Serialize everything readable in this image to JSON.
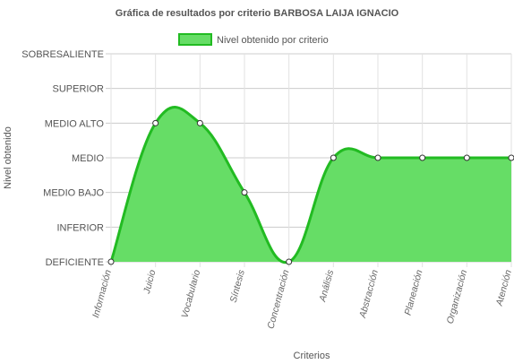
{
  "chart_data": {
    "type": "area",
    "title": "Gráfica de resultados por criterio BARBOSA LAIJA IGNACIO",
    "xlabel": "Criterios",
    "ylabel": "Nivel obtenido",
    "categories": [
      "Información",
      "Juicio",
      "Vocabulario",
      "Síntesis",
      "Concentración",
      "Análisis",
      "Abstracción",
      "Planeación",
      "Organización",
      "Atención"
    ],
    "y_levels": [
      "DEFICIENTE",
      "INFERIOR",
      "MEDIO BAJO",
      "MEDIO",
      "MEDIO ALTO",
      "SUPERIOR",
      "SOBRESALIENTE"
    ],
    "ylim": [
      0,
      6
    ],
    "series": [
      {
        "name": "Nivel obtenido por criterio",
        "values": [
          0,
          4,
          4,
          2,
          0,
          3,
          3,
          3,
          3,
          3
        ],
        "fill_color": "#66dd66",
        "line_color": "#22bb22"
      }
    ],
    "legend_position": "top",
    "grid": true
  }
}
